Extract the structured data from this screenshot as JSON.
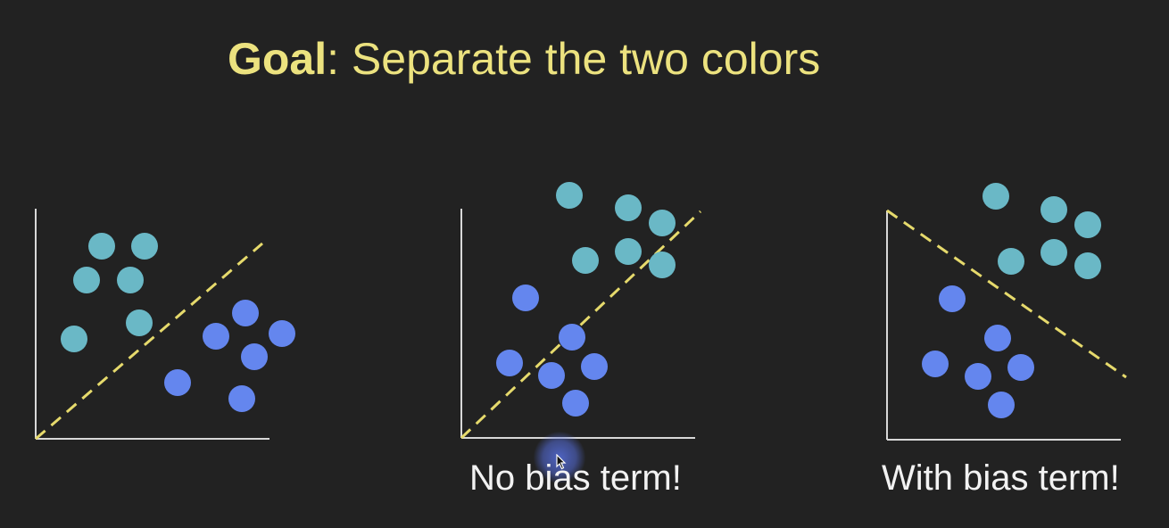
{
  "title": {
    "bold": "Goal",
    "rest": ": Separate the two colors"
  },
  "colors": {
    "background": "#222222",
    "title": "#ece27f",
    "teal_points": "#6ab8c6",
    "blue_points": "#6486ee",
    "boundary": "#e6da6c",
    "axes": "#d8d8d8",
    "caption": "#f2f2f2"
  },
  "panels": [
    {
      "id": "data",
      "caption": "",
      "boundary_through_origin": true
    },
    {
      "id": "no-bias",
      "caption": "No bias term!",
      "boundary_through_origin": true
    },
    {
      "id": "with-bias",
      "caption": "With bias term!",
      "boundary_through_origin": false
    }
  ],
  "cursor": {
    "icon": "mouse-cursor-icon"
  }
}
